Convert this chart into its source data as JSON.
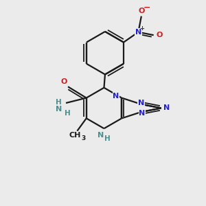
{
  "background_color": "#ebebeb",
  "bond_color": "#1a1a1a",
  "N_color": "#2222cc",
  "O_color": "#cc2222",
  "NH_color": "#4a8f8f",
  "figsize": [
    3.0,
    3.0
  ],
  "dpi": 100,
  "xlim": [
    0,
    10
  ],
  "ylim": [
    0,
    10
  ]
}
